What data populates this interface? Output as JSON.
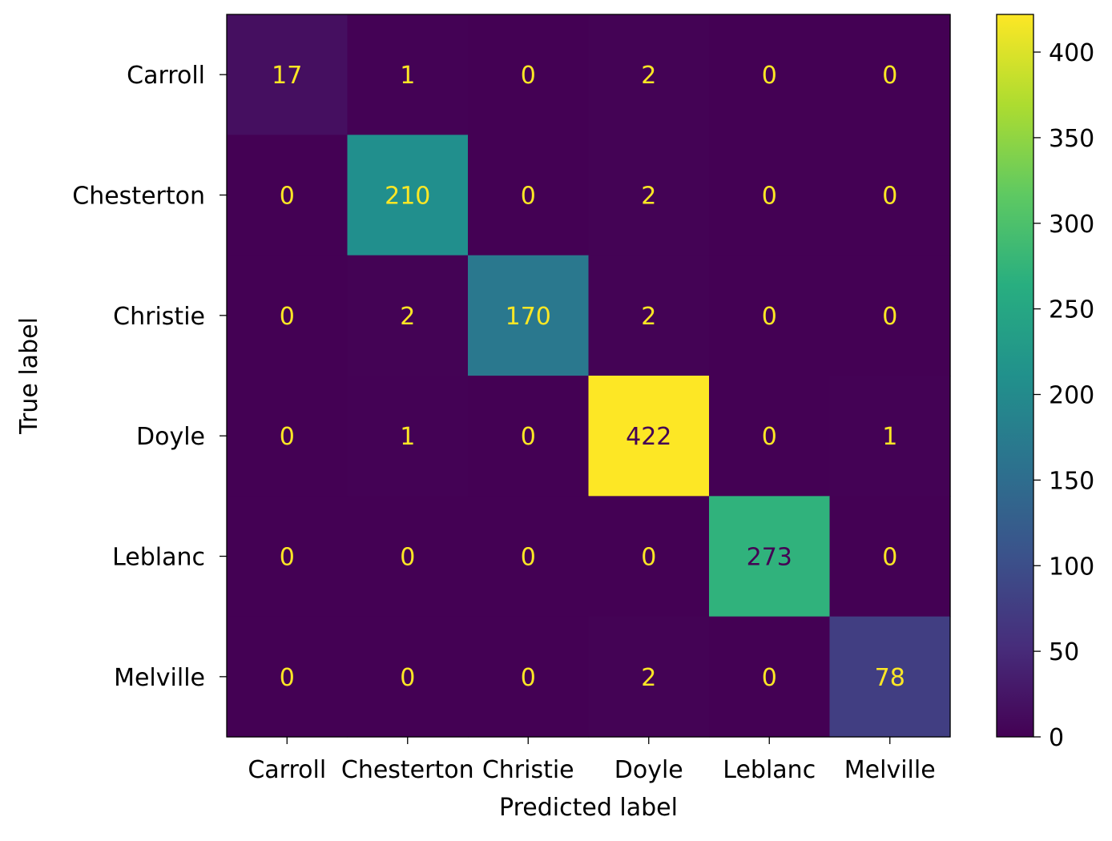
{
  "chart_data": {
    "type": "heatmap",
    "title": "",
    "xlabel": "Predicted label",
    "ylabel": "True label",
    "x_categories": [
      "Carroll",
      "Chesterton",
      "Christie",
      "Doyle",
      "Leblanc",
      "Melville"
    ],
    "y_categories": [
      "Carroll",
      "Chesterton",
      "Christie",
      "Doyle",
      "Leblanc",
      "Melville"
    ],
    "matrix": [
      [
        17,
        1,
        0,
        2,
        0,
        0
      ],
      [
        0,
        210,
        0,
        2,
        0,
        0
      ],
      [
        0,
        2,
        170,
        2,
        0,
        0
      ],
      [
        0,
        1,
        0,
        422,
        0,
        1
      ],
      [
        0,
        0,
        0,
        0,
        273,
        0
      ],
      [
        0,
        0,
        0,
        2,
        0,
        78
      ]
    ],
    "colormap": "viridis",
    "colorbar": {
      "range": [
        0,
        422
      ],
      "ticks": [
        0,
        50,
        100,
        150,
        200,
        250,
        300,
        350,
        400
      ]
    },
    "text_colors": {
      "on_dark": "#fde725",
      "on_light": "#440154"
    },
    "grid": false
  }
}
